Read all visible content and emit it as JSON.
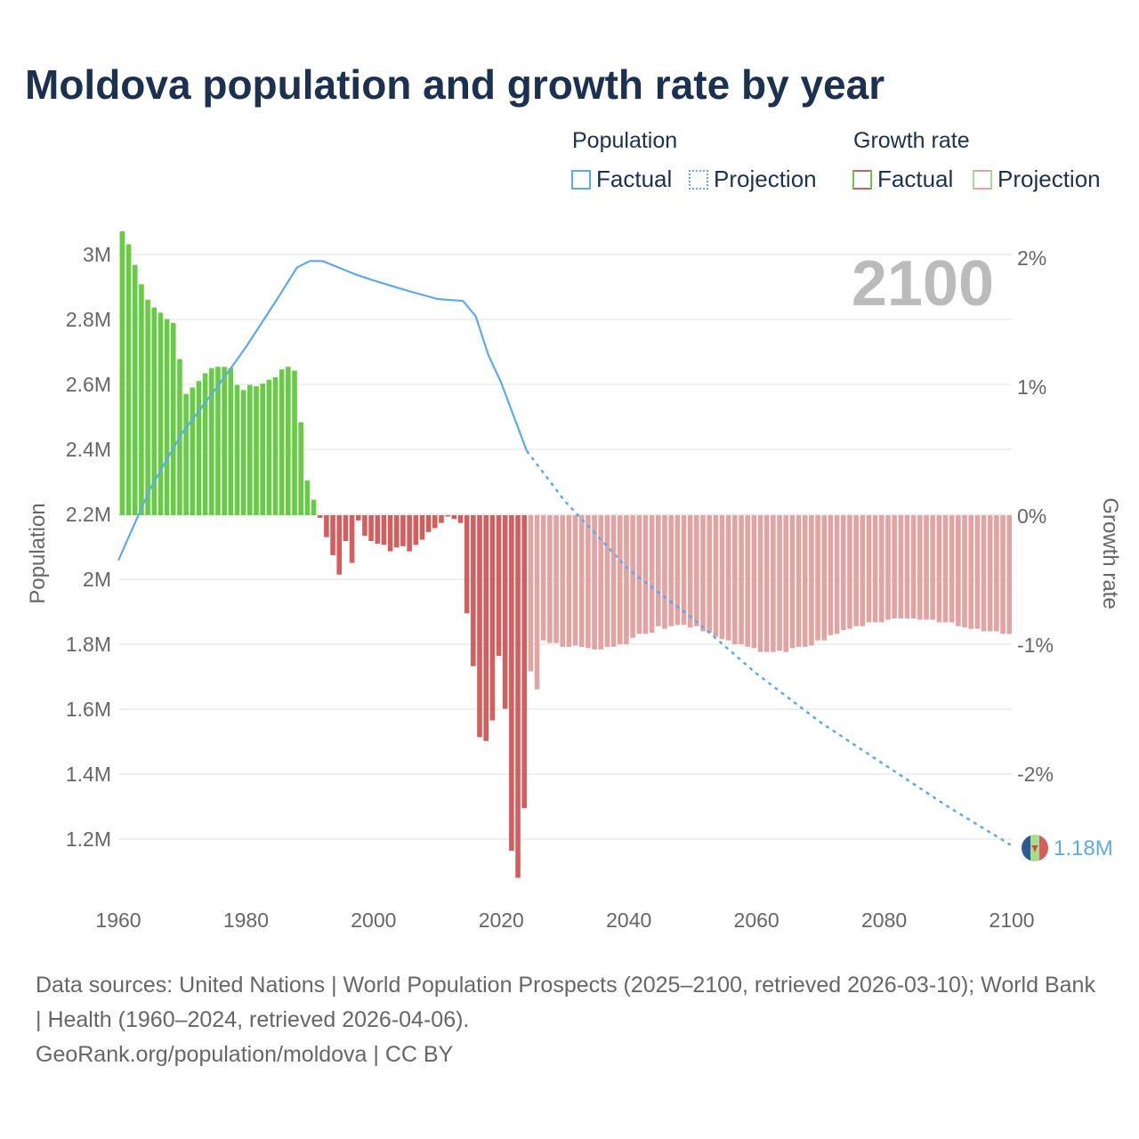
{
  "title": "Moldova population and growth rate by year",
  "legend": {
    "population_heading": "Population",
    "growth_heading": "Growth rate",
    "pop_factual": "Factual",
    "pop_projection": "Projection",
    "growth_factual": "Factual",
    "growth_projection": "Projection"
  },
  "colors": {
    "line": "#5ea9e8",
    "growth_positive": "#66cc44",
    "growth_negative": "#d45d5d",
    "projection_negative": "#e2a3a3",
    "projection_positive": "#a8dd90",
    "title": "#1c3150",
    "year_label": "#bbbbbb"
  },
  "chart_data": {
    "type": "bar+line",
    "title": "Moldova population and growth rate by year",
    "current_year_label": "2100",
    "end_label": "1.18M",
    "xlabel": "",
    "ylabel_left": "Population",
    "ylabel_right": "Growth rate",
    "xlim": [
      1960,
      2100
    ],
    "ylim_left_millions": [
      1.08,
      3.08
    ],
    "ylim_right_percent": [
      -2.81,
      2.2
    ],
    "x_ticks": [
      1960,
      1980,
      2000,
      2020,
      2040,
      2060,
      2080,
      2100
    ],
    "x_tick_labels": [
      "1960",
      "1980",
      "2000",
      "2020",
      "2040",
      "2060",
      "2080",
      "2100"
    ],
    "left_ticks": [
      3.0,
      2.8,
      2.6,
      2.4,
      2.2,
      2.0,
      1.8,
      1.6,
      1.4,
      1.2
    ],
    "left_tick_labels": [
      "3M",
      "2.8M",
      "2.6M",
      "2.4M",
      "2.2M",
      "2M",
      "1.8M",
      "1.6M",
      "1.4M",
      "1.2M"
    ],
    "right_ticks": [
      2,
      1,
      0,
      -1,
      -2
    ],
    "right_tick_labels": [
      "2%",
      "1%",
      "0%",
      "-1%",
      "-2%"
    ],
    "population_factual": {
      "years": [
        1960,
        1965,
        1970,
        1975,
        1978,
        1980,
        1985,
        1988,
        1990,
        1992,
        1995,
        1997,
        2000,
        2005,
        2010,
        2014,
        2016,
        2018,
        2020,
        2022,
        2024
      ],
      "values_millions": [
        2.058,
        2.28,
        2.45,
        2.58,
        2.66,
        2.715,
        2.866,
        2.96,
        2.98,
        2.98,
        2.956,
        2.94,
        2.92,
        2.89,
        2.863,
        2.857,
        2.81,
        2.69,
        2.605,
        2.5,
        2.395
      ]
    },
    "population_projection": {
      "years": [
        2024,
        2030,
        2040,
        2050,
        2060,
        2070,
        2080,
        2090,
        2100
      ],
      "values_millions": [
        2.395,
        2.24,
        2.03,
        1.88,
        1.71,
        1.56,
        1.43,
        1.3,
        1.18
      ]
    },
    "growth_factual": {
      "start_year": 1960,
      "values_percent": [
        2.2,
        2.1,
        1.94,
        1.79,
        1.67,
        1.61,
        1.57,
        1.52,
        1.49,
        1.21,
        0.94,
        0.99,
        1.04,
        1.1,
        1.14,
        1.15,
        1.15,
        1.14,
        1.01,
        0.97,
        1.01,
        1.0,
        1.02,
        1.05,
        1.07,
        1.13,
        1.15,
        1.12,
        0.72,
        0.27,
        0.12,
        -0.02,
        -0.17,
        -0.31,
        -0.46,
        -0.2,
        -0.37,
        -0.04,
        -0.16,
        -0.2,
        -0.22,
        -0.23,
        -0.28,
        -0.25,
        -0.24,
        -0.28,
        -0.23,
        -0.19,
        -0.13,
        -0.1,
        -0.06,
        -0.01,
        -0.03,
        -0.06,
        -0.76,
        -1.17,
        -1.72,
        -1.75,
        -1.59,
        -1.09,
        -1.5,
        -2.6,
        -2.81,
        -2.27
      ]
    },
    "growth_projection": {
      "start_year": 2024,
      "values_percent": [
        -1.21,
        -1.35,
        -0.97,
        -0.99,
        -0.99,
        -1.02,
        -1.02,
        -1.01,
        -1.02,
        -1.03,
        -1.04,
        -1.04,
        -1.02,
        -1.02,
        -1.0,
        -1.0,
        -0.95,
        -0.92,
        -0.92,
        -0.91,
        -0.86,
        -0.88,
        -0.86,
        -0.85,
        -0.85,
        -0.87,
        -0.86,
        -0.9,
        -0.91,
        -0.94,
        -0.96,
        -0.97,
        -1.0,
        -1.0,
        -1.02,
        -1.03,
        -1.06,
        -1.06,
        -1.06,
        -1.05,
        -1.06,
        -1.03,
        -1.02,
        -1.02,
        -1.01,
        -0.97,
        -0.97,
        -0.93,
        -0.92,
        -0.89,
        -0.88,
        -0.86,
        -0.86,
        -0.83,
        -0.83,
        -0.83,
        -0.81,
        -0.8,
        -0.8,
        -0.8,
        -0.8,
        -0.81,
        -0.81,
        -0.81,
        -0.83,
        -0.83,
        -0.83,
        -0.86,
        -0.87,
        -0.88,
        -0.88,
        -0.9,
        -0.9,
        -0.9,
        -0.92,
        -0.92
      ]
    },
    "grid": true,
    "legend_placement": "top-right"
  },
  "footer": {
    "sources": "Data sources: United Nations | World Population Prospects (2025–2100, retrieved 2026-03-10); World Bank | Health (1960–2024, retrieved 2026-04-06).",
    "credit": "GeoRank.org/population/moldova | CC BY"
  }
}
